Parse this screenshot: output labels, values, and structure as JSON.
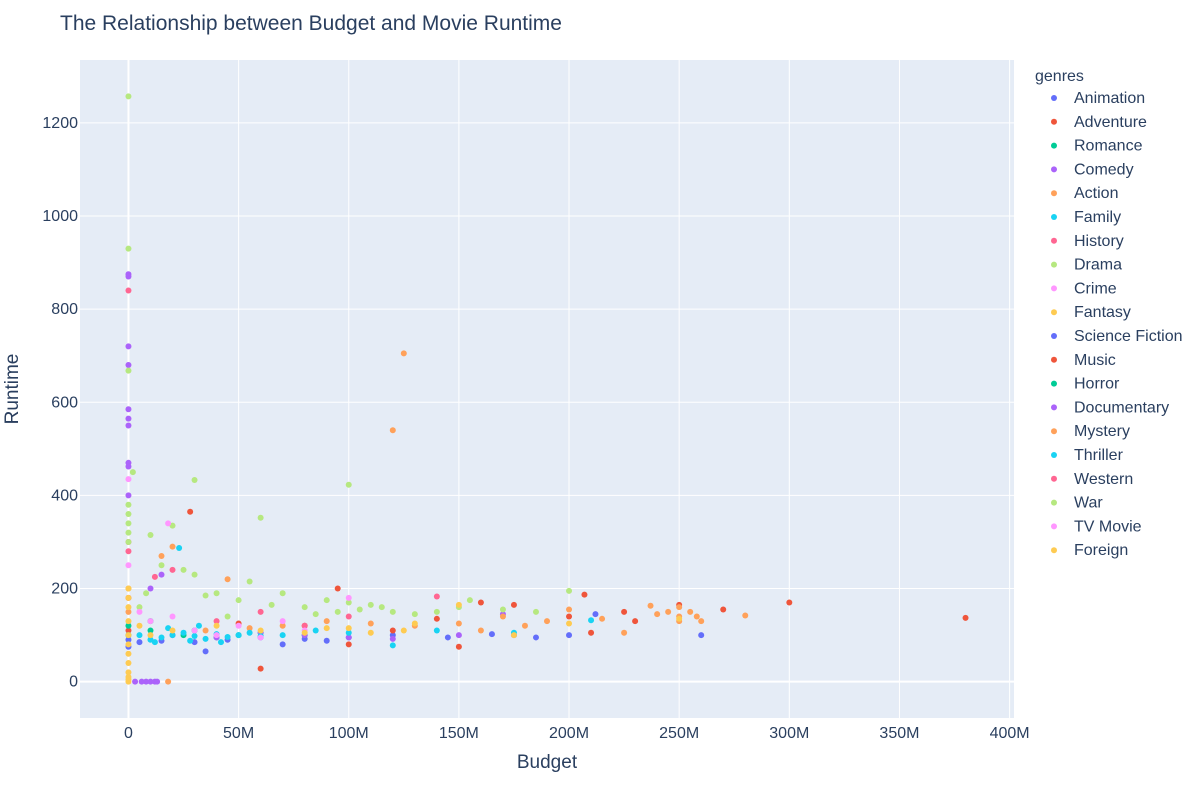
{
  "chart_data": {
    "type": "scatter",
    "title": "The Relationship between Budget and Movie Runtime",
    "xlabel": "Budget",
    "ylabel": "Runtime",
    "xlim": [
      -22000000,
      402000000
    ],
    "ylim": [
      -78,
      1335
    ],
    "x_ticks": [
      0,
      50000000,
      100000000,
      150000000,
      200000000,
      250000000,
      300000000,
      350000000,
      400000000
    ],
    "x_tick_labels": [
      "0",
      "50M",
      "100M",
      "150M",
      "200M",
      "250M",
      "300M",
      "350M",
      "400M"
    ],
    "y_ticks": [
      0,
      200,
      400,
      600,
      800,
      1000,
      1200
    ],
    "y_tick_labels": [
      "0",
      "200",
      "400",
      "600",
      "800",
      "1000",
      "1200"
    ],
    "grid": true,
    "legend_title": "genres",
    "legend_position": "right",
    "series": [
      {
        "name": "Animation",
        "color": "#636efa",
        "points": [
          [
            0,
            90
          ],
          [
            0,
            75
          ],
          [
            5000000,
            85
          ],
          [
            15000000,
            88
          ],
          [
            30000000,
            85
          ],
          [
            45000000,
            90
          ],
          [
            60000000,
            95
          ],
          [
            80000000,
            92
          ],
          [
            100000000,
            95
          ],
          [
            120000000,
            100
          ],
          [
            145000000,
            95
          ],
          [
            165000000,
            102
          ],
          [
            175000000,
            100
          ],
          [
            185000000,
            95
          ],
          [
            200000000,
            100
          ],
          [
            212000000,
            145
          ],
          [
            260000000,
            100
          ],
          [
            35000000,
            65
          ],
          [
            70000000,
            80
          ],
          [
            90000000,
            88
          ]
        ]
      },
      {
        "name": "Adventure",
        "color": "#ef553b",
        "points": [
          [
            0,
            110
          ],
          [
            0,
            180
          ],
          [
            28000000,
            365
          ],
          [
            60000000,
            28
          ],
          [
            95000000,
            200
          ],
          [
            150000000,
            75
          ],
          [
            160000000,
            170
          ],
          [
            175000000,
            165
          ],
          [
            200000000,
            140
          ],
          [
            207000000,
            187
          ],
          [
            225000000,
            150
          ],
          [
            230000000,
            130
          ],
          [
            250000000,
            165
          ],
          [
            270000000,
            155
          ],
          [
            300000000,
            170
          ],
          [
            380000000,
            137
          ],
          [
            210000000,
            105
          ],
          [
            120000000,
            110
          ],
          [
            80000000,
            120
          ],
          [
            50000000,
            125
          ],
          [
            140000000,
            135
          ],
          [
            100000000,
            80
          ]
        ]
      },
      {
        "name": "Romance",
        "color": "#00cc96",
        "points": [
          [
            0,
            120
          ],
          [
            0,
            100
          ],
          [
            10000000,
            110
          ],
          [
            25000000,
            100
          ],
          [
            40000000,
            95
          ],
          [
            60000000,
            105
          ],
          [
            80000000,
            100
          ],
          [
            10000000,
            130
          ],
          [
            30000000,
            110
          ],
          [
            50000000,
            100
          ]
        ]
      },
      {
        "name": "Comedy",
        "color": "#ab63fa",
        "points": [
          [
            0,
            720
          ],
          [
            0,
            680
          ],
          [
            0,
            585
          ],
          [
            0,
            565
          ],
          [
            0,
            550
          ],
          [
            0,
            470
          ],
          [
            0,
            462
          ],
          [
            0,
            400
          ],
          [
            0,
            875
          ],
          [
            0,
            870
          ],
          [
            3000000,
            0
          ],
          [
            6000000,
            0
          ],
          [
            8000000,
            0
          ],
          [
            10000000,
            0
          ],
          [
            12000000,
            0
          ],
          [
            13000000,
            0
          ],
          [
            10000000,
            200
          ],
          [
            20000000,
            100
          ],
          [
            40000000,
            95
          ],
          [
            60000000,
            105
          ],
          [
            80000000,
            100
          ],
          [
            100000000,
            95
          ],
          [
            120000000,
            92
          ],
          [
            150000000,
            100
          ],
          [
            170000000,
            145
          ],
          [
            15000000,
            230
          ]
        ]
      },
      {
        "name": "Action",
        "color": "#ffa15a",
        "points": [
          [
            0,
            150
          ],
          [
            0,
            200
          ],
          [
            18000000,
            0
          ],
          [
            20000000,
            290
          ],
          [
            45000000,
            220
          ],
          [
            125000000,
            705
          ],
          [
            120000000,
            540
          ],
          [
            150000000,
            125
          ],
          [
            180000000,
            120
          ],
          [
            200000000,
            155
          ],
          [
            237000000,
            163
          ],
          [
            240000000,
            145
          ],
          [
            245000000,
            150
          ],
          [
            250000000,
            140
          ],
          [
            250000000,
            130
          ],
          [
            250000000,
            160
          ],
          [
            255000000,
            150
          ],
          [
            258000000,
            140
          ],
          [
            260000000,
            130
          ],
          [
            225000000,
            105
          ],
          [
            215000000,
            135
          ],
          [
            280000000,
            142
          ],
          [
            190000000,
            130
          ],
          [
            170000000,
            140
          ],
          [
            160000000,
            110
          ],
          [
            130000000,
            120
          ],
          [
            110000000,
            125
          ],
          [
            90000000,
            130
          ],
          [
            70000000,
            120
          ],
          [
            55000000,
            115
          ],
          [
            35000000,
            110
          ],
          [
            15000000,
            270
          ]
        ]
      },
      {
        "name": "Family",
        "color": "#19d3f3",
        "points": [
          [
            23000000,
            287
          ],
          [
            5000000,
            100
          ],
          [
            10000000,
            90
          ],
          [
            15000000,
            95
          ],
          [
            20000000,
            100
          ],
          [
            25000000,
            105
          ],
          [
            30000000,
            98
          ],
          [
            35000000,
            92
          ],
          [
            40000000,
            102
          ],
          [
            45000000,
            96
          ],
          [
            50000000,
            100
          ],
          [
            55000000,
            105
          ],
          [
            60000000,
            98
          ],
          [
            70000000,
            100
          ],
          [
            85000000,
            110
          ],
          [
            100000000,
            105
          ],
          [
            120000000,
            78
          ],
          [
            140000000,
            110
          ],
          [
            175000000,
            105
          ],
          [
            210000000,
            132
          ],
          [
            12000000,
            85
          ],
          [
            18000000,
            115
          ],
          [
            28000000,
            88
          ],
          [
            32000000,
            120
          ],
          [
            42000000,
            85
          ]
        ]
      },
      {
        "name": "History",
        "color": "#ff6692",
        "points": [
          [
            0,
            840
          ],
          [
            0,
            300
          ],
          [
            0,
            280
          ],
          [
            12000000,
            225
          ],
          [
            20000000,
            240
          ],
          [
            60000000,
            150
          ],
          [
            140000000,
            183
          ],
          [
            100000000,
            140
          ],
          [
            40000000,
            130
          ],
          [
            80000000,
            120
          ]
        ]
      },
      {
        "name": "Drama",
        "color": "#b6e880",
        "points": [
          [
            0,
            1257
          ],
          [
            0,
            930
          ],
          [
            0,
            668
          ],
          [
            0,
            380
          ],
          [
            0,
            360
          ],
          [
            0,
            340
          ],
          [
            0,
            320
          ],
          [
            0,
            300
          ],
          [
            2000000,
            450
          ],
          [
            30000000,
            433
          ],
          [
            60000000,
            352
          ],
          [
            100000000,
            423
          ],
          [
            20000000,
            335
          ],
          [
            25000000,
            240
          ],
          [
            30000000,
            230
          ],
          [
            35000000,
            185
          ],
          [
            40000000,
            190
          ],
          [
            50000000,
            175
          ],
          [
            55000000,
            215
          ],
          [
            70000000,
            190
          ],
          [
            90000000,
            175
          ],
          [
            100000000,
            170
          ],
          [
            105000000,
            155
          ],
          [
            110000000,
            165
          ],
          [
            115000000,
            160
          ],
          [
            120000000,
            150
          ],
          [
            130000000,
            145
          ],
          [
            150000000,
            160
          ],
          [
            155000000,
            175
          ],
          [
            200000000,
            195
          ],
          [
            10000000,
            315
          ],
          [
            15000000,
            250
          ],
          [
            45000000,
            140
          ],
          [
            65000000,
            165
          ],
          [
            80000000,
            160
          ],
          [
            85000000,
            145
          ],
          [
            95000000,
            150
          ],
          [
            140000000,
            150
          ],
          [
            170000000,
            155
          ],
          [
            185000000,
            150
          ],
          [
            5000000,
            160
          ],
          [
            8000000,
            190
          ]
        ]
      },
      {
        "name": "Crime",
        "color": "#ff97ff",
        "points": [
          [
            0,
            435
          ],
          [
            18000000,
            340
          ],
          [
            0,
            250
          ],
          [
            10000000,
            130
          ],
          [
            30000000,
            110
          ],
          [
            50000000,
            120
          ],
          [
            70000000,
            130
          ],
          [
            100000000,
            180
          ],
          [
            20000000,
            140
          ],
          [
            40000000,
            100
          ],
          [
            60000000,
            95
          ],
          [
            80000000,
            110
          ],
          [
            5000000,
            150
          ]
        ]
      },
      {
        "name": "Fantasy",
        "color": "#fecb52",
        "points": [
          [
            0,
            100
          ],
          [
            0,
            80
          ],
          [
            0,
            60
          ],
          [
            0,
            40
          ],
          [
            0,
            20
          ],
          [
            0,
            10
          ],
          [
            0,
            5
          ],
          [
            0,
            0
          ],
          [
            0,
            130
          ],
          [
            0,
            160
          ],
          [
            0,
            180
          ],
          [
            0,
            200
          ],
          [
            5000000,
            120
          ],
          [
            10000000,
            100
          ],
          [
            20000000,
            110
          ],
          [
            40000000,
            120
          ],
          [
            60000000,
            110
          ],
          [
            80000000,
            105
          ],
          [
            100000000,
            115
          ],
          [
            125000000,
            110
          ],
          [
            150000000,
            165
          ],
          [
            175000000,
            100
          ],
          [
            200000000,
            125
          ],
          [
            250000000,
            135
          ],
          [
            130000000,
            125
          ],
          [
            110000000,
            105
          ],
          [
            90000000,
            115
          ]
        ]
      }
    ],
    "extra_legend": [
      {
        "name": "Science Fiction",
        "color": "#636efa"
      },
      {
        "name": "Music",
        "color": "#ef553b"
      },
      {
        "name": "Horror",
        "color": "#00cc96"
      },
      {
        "name": "Documentary",
        "color": "#ab63fa"
      },
      {
        "name": "Mystery",
        "color": "#ffa15a"
      },
      {
        "name": "Thriller",
        "color": "#19d3f3"
      },
      {
        "name": "Western",
        "color": "#ff6692"
      },
      {
        "name": "War",
        "color": "#b6e880"
      },
      {
        "name": "TV Movie",
        "color": "#ff97ff"
      },
      {
        "name": "Foreign",
        "color": "#fecb52"
      }
    ]
  }
}
